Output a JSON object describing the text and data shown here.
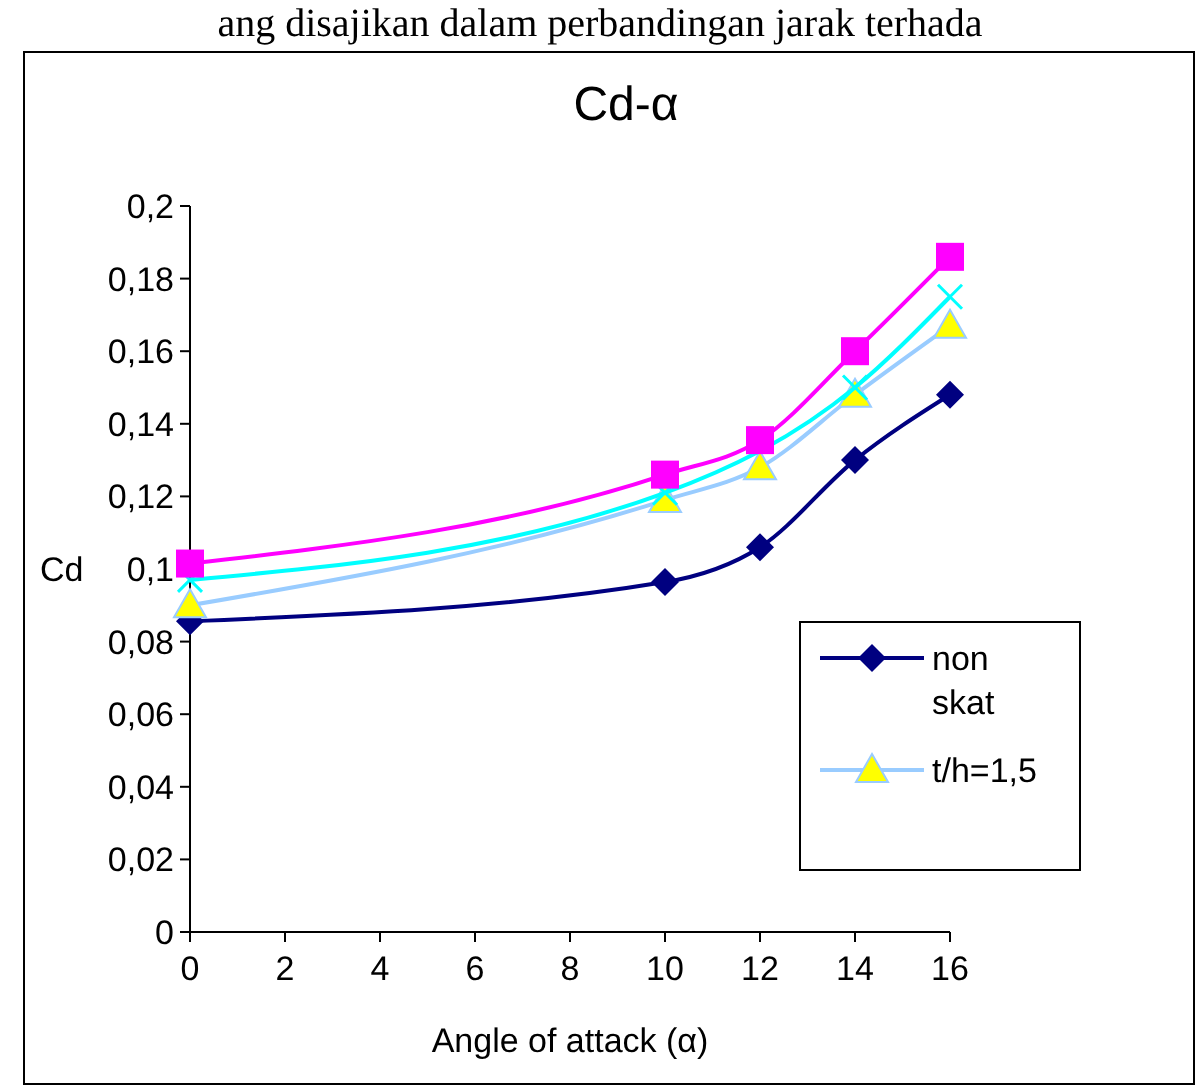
{
  "chart_data": {
    "type": "line",
    "title": "Cd-α",
    "xlabel": "Angle of attack (α)",
    "ylabel": "Cd",
    "annotations": [
      "ang disajikan dalam perbandingan jarak terhada"
    ],
    "x": [
      0,
      10,
      12,
      14,
      16
    ],
    "xlim": [
      0,
      16
    ],
    "xticks": [
      0,
      2,
      4,
      6,
      8,
      10,
      12,
      14,
      16
    ],
    "ylim": [
      0,
      0.2
    ],
    "yticks": [
      {
        "value": 0,
        "label": "0"
      },
      {
        "value": 0.02,
        "label": "0,02"
      },
      {
        "value": 0.04,
        "label": "0,04"
      },
      {
        "value": 0.06,
        "label": "0,06"
      },
      {
        "value": 0.08,
        "label": "0,08"
      },
      {
        "value": 0.1,
        "label": "0,1"
      },
      {
        "value": 0.12,
        "label": "0,12"
      },
      {
        "value": 0.14,
        "label": "0,14"
      },
      {
        "value": 0.16,
        "label": "0,16"
      },
      {
        "value": 0.18,
        "label": "0,18"
      },
      {
        "value": 0.2,
        "label": "0,2"
      }
    ],
    "grid": false,
    "legend": "right",
    "line_style": "solid",
    "series": [
      {
        "name": "non skat",
        "color": "#000080",
        "marker": "diamond",
        "values": [
          0.0856,
          0.0964,
          0.106,
          0.13,
          0.148
        ]
      },
      {
        "name": "t/h=1,5",
        "color": "#99ccff",
        "marker": "triangle",
        "values": [
          0.09,
          0.119,
          0.128,
          0.148,
          0.167
        ]
      },
      {
        "color": "#00ffff",
        "marker": "cross",
        "values": [
          0.097,
          0.121,
          null,
          0.15,
          0.175
        ]
      },
      {
        "color": "#ff00ff",
        "marker": "square",
        "values": [
          0.1015,
          0.126,
          0.1355,
          0.16,
          0.186
        ]
      }
    ]
  }
}
